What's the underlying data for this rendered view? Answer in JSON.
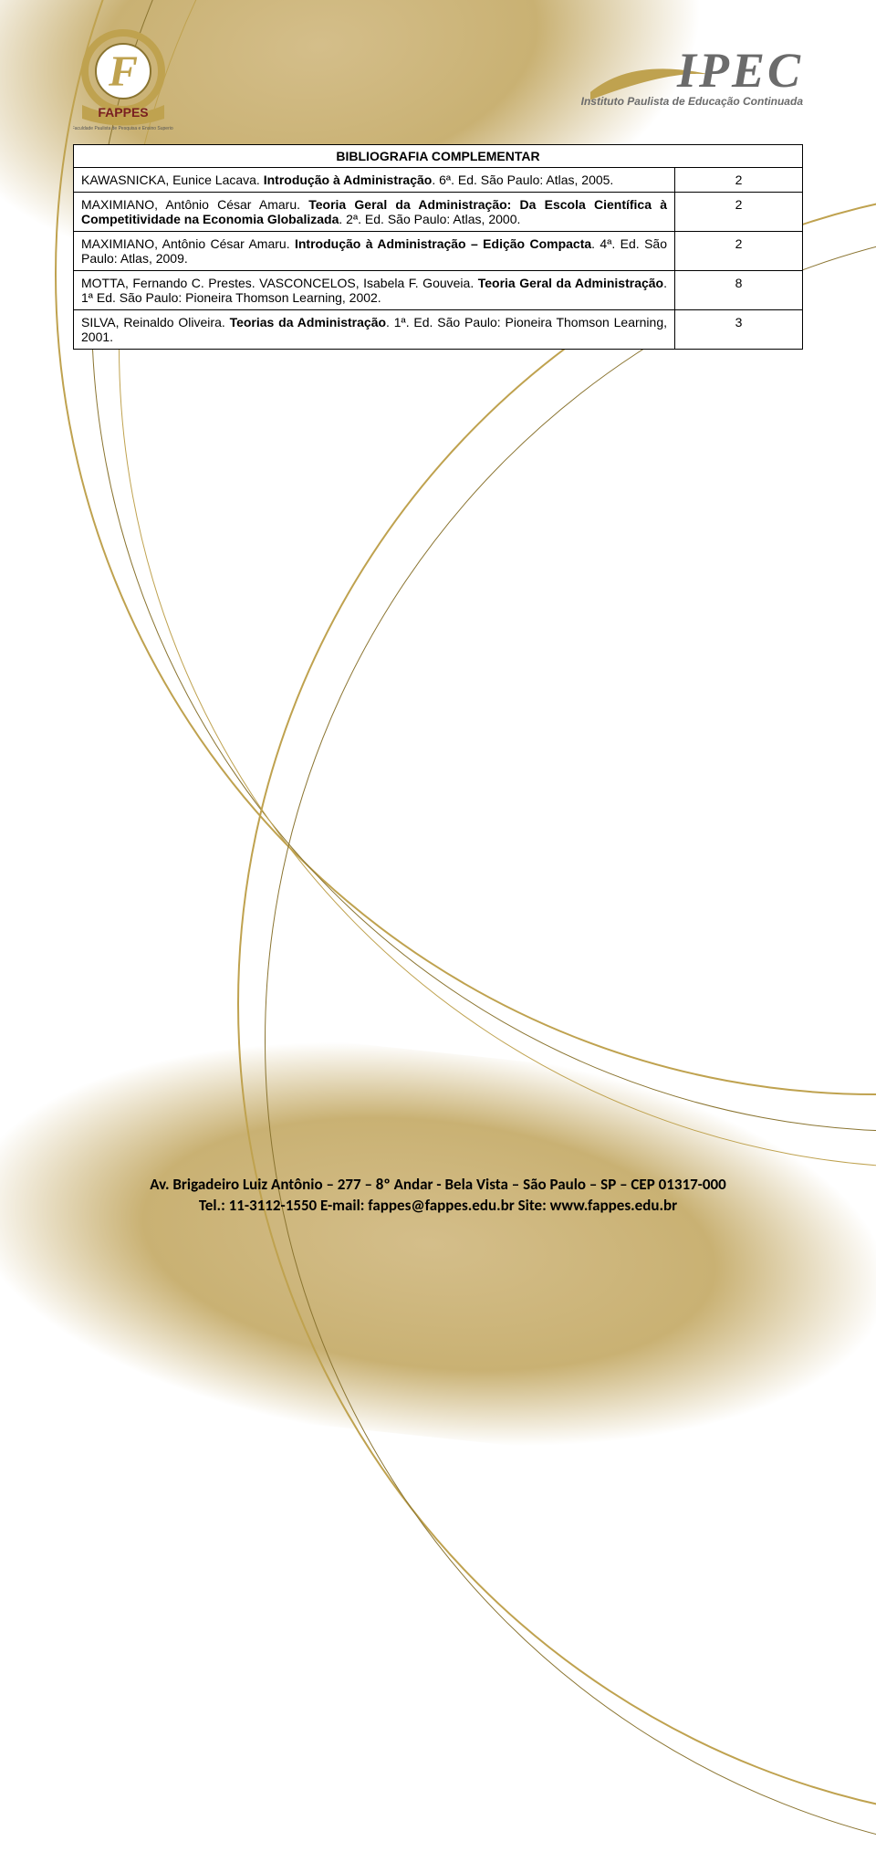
{
  "logos": {
    "fappes": {
      "letter": "F",
      "name": "FAPPES",
      "tag": "Faculdade Paulista de Pesquisa e Ensino Superior"
    },
    "ipec": {
      "name": "IPEC",
      "tag": "Instituto Paulista de Educação Continuada"
    }
  },
  "colors": {
    "gold": "#bfa24f",
    "gold_light": "#d4be8a",
    "gold_dark": "#8a7430",
    "text": "#000000",
    "gray": "#6b6b6b"
  },
  "table": {
    "header": "BIBLIOGRAFIA COMPLEMENTAR",
    "rows": [
      {
        "ref_parts": [
          {
            "t": "KAWASNICKA, Eunice Lacava. ",
            "b": false
          },
          {
            "t": "Introdução à Administração",
            "b": true
          },
          {
            "t": ". 6ª. Ed. São Paulo: Atlas, 2005.",
            "b": false
          }
        ],
        "qty": "2"
      },
      {
        "ref_parts": [
          {
            "t": "MAXIMIANO, Antônio César Amaru. ",
            "b": false
          },
          {
            "t": "Teoria Geral da Administração: Da Escola Científica à Competitividade na Economia Globalizada",
            "b": true
          },
          {
            "t": ". 2ª. Ed. São Paulo: Atlas, 2000.",
            "b": false
          }
        ],
        "qty": "2"
      },
      {
        "ref_parts": [
          {
            "t": "MAXIMIANO, Antônio César Amaru. ",
            "b": false
          },
          {
            "t": "Introdução à Administração – Edição Compacta",
            "b": true
          },
          {
            "t": ". 4ª. Ed. São Paulo: Atlas, 2009.",
            "b": false
          }
        ],
        "qty": "2"
      },
      {
        "ref_parts": [
          {
            "t": "MOTTA, Fernando C. Prestes. VASCONCELOS, Isabela F. Gouveia. ",
            "b": false
          },
          {
            "t": "Teoria Geral da Administração",
            "b": true
          },
          {
            "t": ". 1ª Ed. São Paulo: Pioneira Thomson Learning, 2002.",
            "b": false
          }
        ],
        "qty": "8"
      },
      {
        "ref_parts": [
          {
            "t": "SILVA, Reinaldo Oliveira. ",
            "b": false
          },
          {
            "t": "Teorias da Administração",
            "b": true
          },
          {
            "t": ". 1ª. Ed. São Paulo: Pioneira Thomson Learning, 2001.",
            "b": false
          }
        ],
        "qty": "3"
      }
    ]
  },
  "footer": {
    "line1": "Av. Brigadeiro Luiz Antônio – 277 – 8º Andar - Bela Vista – São Paulo – SP – CEP 01317-000",
    "line2": "Tel.: 11-3112-1550 E-mail: fappes@fappes.edu.br Site: www.fappes.edu.br"
  }
}
